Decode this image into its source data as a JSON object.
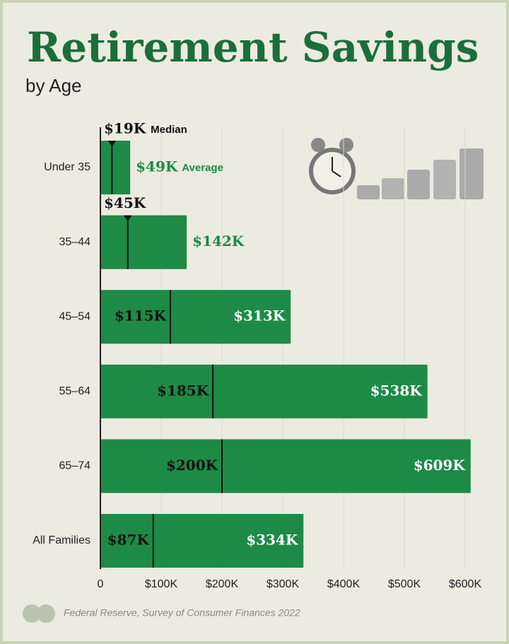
{
  "chart_data": {
    "type": "bar",
    "title": "Retirement Savings",
    "subtitle": "by Age",
    "categories": [
      "Under 35",
      "35–44",
      "45–54",
      "55–64",
      "65–74",
      "All Families"
    ],
    "series": [
      {
        "name": "Median",
        "color": "#111111",
        "values": [
          19000,
          45000,
          115000,
          185000,
          200000,
          87000
        ],
        "value_labels": [
          "$19K",
          "$45K",
          "$115K",
          "$185K",
          "$200K",
          "$87K"
        ]
      },
      {
        "name": "Average",
        "color": "#1e8a47",
        "values": [
          49000,
          142000,
          313000,
          538000,
          609000,
          334000
        ],
        "value_labels": [
          "$49K",
          "$142K",
          "$313K",
          "$538K",
          "$609K",
          "$334K"
        ]
      }
    ],
    "xlim": [
      0,
      650000
    ],
    "xticks": [
      0,
      {
        "value": 100000,
        "label": "$100K"
      },
      {
        "value": 200000,
        "label": "$200K"
      },
      {
        "value": 300000,
        "label": "$300K"
      },
      {
        "value": 400000,
        "label": "$400K"
      },
      {
        "value": 500000,
        "label": "$500K"
      },
      {
        "value": 600000,
        "label": "$600K"
      }
    ],
    "grid": true,
    "source": "Federal Reserve, Survey of Consumer Finances 2022"
  }
}
